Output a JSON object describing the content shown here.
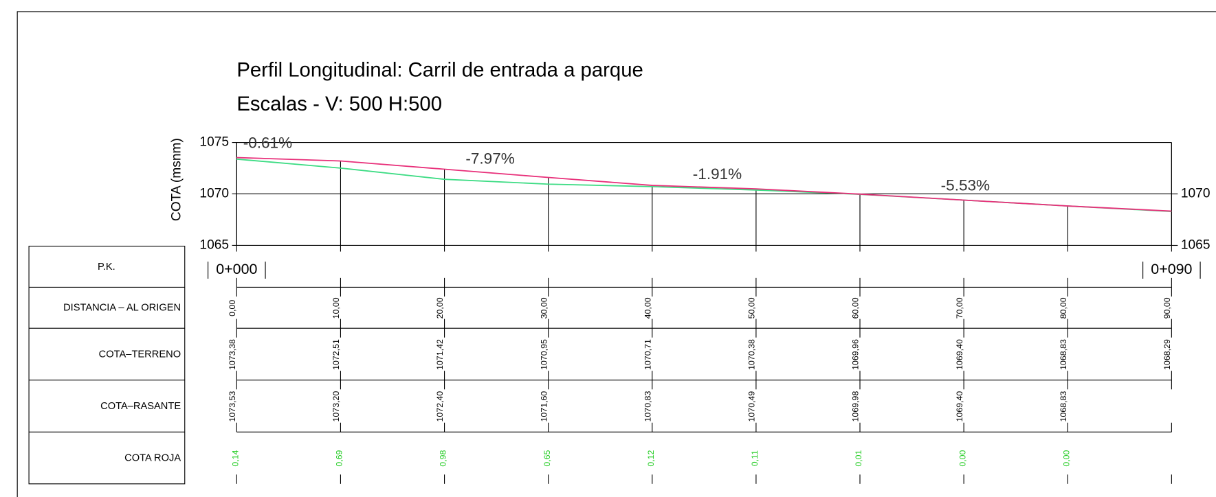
{
  "title": "Perfil Longitudinal: Carril de entrada a parque",
  "subtitle": "Escalas - V: 500 H:500",
  "chart_data": {
    "type": "line",
    "y_label": "COTA (msnm)",
    "x": [
      0,
      10,
      20,
      30,
      40,
      50,
      60,
      70,
      80,
      90
    ],
    "xlim": [
      0,
      90
    ],
    "xticks": [
      {
        "value": 0,
        "label": "0,00"
      },
      {
        "value": 10,
        "label": "10,00"
      },
      {
        "value": 20,
        "label": "20,00"
      },
      {
        "value": 30,
        "label": "30,00"
      },
      {
        "value": 40,
        "label": "40,00"
      },
      {
        "value": 50,
        "label": "50,00"
      },
      {
        "value": 60,
        "label": "60,00"
      },
      {
        "value": 70,
        "label": "70,00"
      },
      {
        "value": 80,
        "label": "80,00"
      },
      {
        "value": 90,
        "label": "90,00"
      }
    ],
    "ylim": [
      1065,
      1075
    ],
    "yticks": [
      1065,
      1070,
      1075
    ],
    "y2lim": [
      1065,
      1075
    ],
    "y2ticks": [
      1065,
      1070
    ],
    "grid": true,
    "series": [
      {
        "name": "COTA–TERRENO",
        "color": "#3ddc84",
        "values": [
          1073.38,
          1072.51,
          1071.42,
          1070.95,
          1070.71,
          1070.38,
          1069.96,
          1069.4,
          1068.83,
          1068.29
        ],
        "value_labels": [
          "1073,38",
          "1072,51",
          "1071,42",
          "1070,95",
          "1070,71",
          "1070,38",
          "1069,96",
          "1069,40",
          "1068,83",
          "1068,29"
        ]
      },
      {
        "name": "COTA–RASANTE",
        "color": "#e8307a",
        "values": [
          1073.53,
          1073.2,
          1072.4,
          1071.6,
          1070.83,
          1070.49,
          1069.98,
          1069.4,
          1068.83,
          1068.33
        ],
        "value_labels": [
          "1073,53",
          "1073,20",
          "1072,40",
          "1071,60",
          "1070,83",
          "1070,49",
          "1069,98",
          "1069,40",
          "1068,83",
          null
        ]
      }
    ],
    "annotations": [
      "-0.61%",
      "-7.97%",
      "-1.91%",
      "-5.53%"
    ]
  },
  "table": {
    "pk_header": "P.K.",
    "distance_header": "DISTANCIA – AL ORIGEN",
    "cota_roja_header": "COTA ROJA",
    "pk": [
      "0+000",
      "0+090"
    ],
    "cota_roja": [
      "0,14",
      "0,69",
      "0,98",
      "0,65",
      "0,12",
      "0,11",
      "0,01",
      "0,00",
      "0,00"
    ]
  }
}
